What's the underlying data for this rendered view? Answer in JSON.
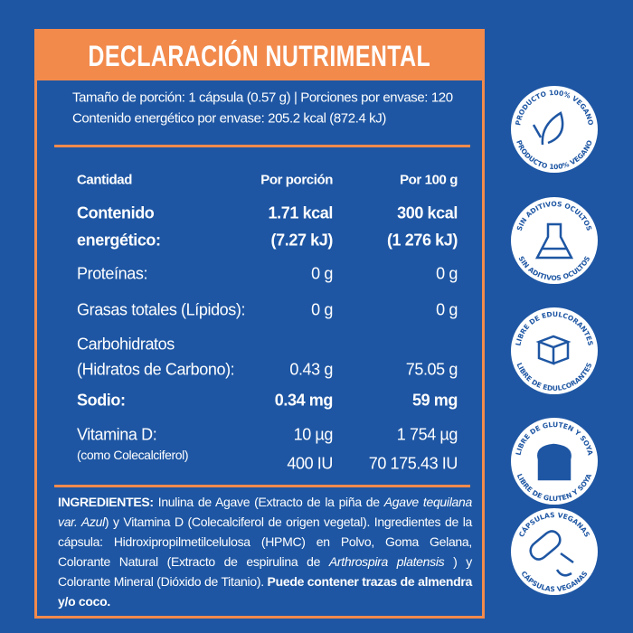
{
  "header": {
    "title": "DECLARACIÓN NUTRIMENTAL"
  },
  "serving": [
    "Tamaño de porción:  1 cápsula (0.57 g)  |  Porciones por envase: 120",
    "Contenido energético por envase: 205.2 kcal (872.4 kJ)"
  ],
  "table": {
    "columns": [
      "Cantidad",
      "Por porción",
      "Por 100 g"
    ],
    "rows": [
      {
        "label": [
          "Contenido",
          "energético:"
        ],
        "per_portion": [
          "1.71 kcal",
          "(7.27 kJ)"
        ],
        "per_100g": [
          "300 kcal",
          "(1 276 kJ)"
        ],
        "emphasis": true
      },
      {
        "label": [
          "Proteínas:"
        ],
        "per_portion": [
          "0 g"
        ],
        "per_100g": [
          "0 g"
        ],
        "emphasis": false
      },
      {
        "label": [
          "Grasas totales (Lípidos):"
        ],
        "per_portion": [
          "0 g"
        ],
        "per_100g": [
          "0 g"
        ],
        "emphasis": false
      },
      {
        "label": [
          "Carbohidratos",
          "(Hidratos de Carbono):"
        ],
        "per_portion": [
          "0.43 g"
        ],
        "per_100g": [
          "75.05 g"
        ],
        "emphasis": false
      },
      {
        "label": [
          "Sodio:"
        ],
        "per_portion": [
          "0.34 mg"
        ],
        "per_100g": [
          "59 mg"
        ],
        "emphasis": true
      },
      {
        "label": [
          "Vitamina D:",
          "(como Colecalciferol)"
        ],
        "per_portion": [
          "10 µg",
          "400 IU"
        ],
        "per_100g": [
          "1 754 µg",
          "70 175.43 IU"
        ],
        "emphasis": false
      }
    ]
  },
  "ingredients": [
    "INGREDIENTES:",
    " Inulina de Agave (Extracto de la piña de ",
    "Agave tequilana var. Azul",
    ") y Vitamina D (Colecalciferol de origen vegetal). Ingredientes de la cápsula: Hidroxipropilmetilcelulosa (HPMC) en Polvo, Goma Gelana, Colorante Natural (Extracto de espirulina de ",
    "Arthrospira platensis",
    " ) y Colorante Mineral (Dióxido de Titanio). ",
    "Puede contener trazas de almendra y/o coco."
  ],
  "badges": [
    "PRODUCTO 100% VEGANO",
    "SIN ADITIVOS OCULTOS",
    "LIBRE DE EDULCORANTES",
    "LIBRE DE GLUTEN Y SOYA",
    "CÁPSULAS VEGANAS"
  ]
}
